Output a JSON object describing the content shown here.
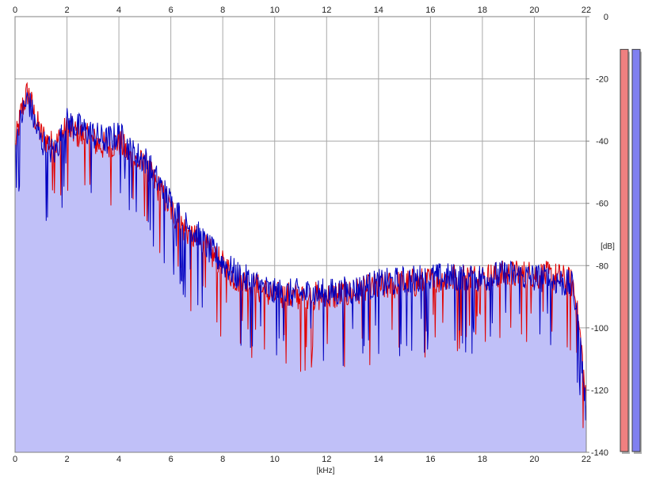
{
  "chart_data": {
    "type": "area",
    "title": "",
    "xlabel": "[kHz]",
    "ylabel": "[dB]",
    "xlim": [
      0,
      22
    ],
    "ylim": [
      -140,
      0
    ],
    "x_ticks": [
      0,
      2,
      4,
      6,
      8,
      10,
      12,
      14,
      16,
      18,
      20,
      22
    ],
    "y_ticks": [
      0,
      -20,
      -40,
      -60,
      -80,
      -100,
      -120,
      -140
    ],
    "x_tick_labels": [
      "0",
      "2",
      "4",
      "6",
      "8",
      "10",
      "12",
      "14",
      "16",
      "18",
      "20",
      "22"
    ],
    "y_tick_labels": [
      "0",
      "-20",
      "-40",
      "-60",
      "-80",
      "-100",
      "-120",
      "-140"
    ],
    "grid": true,
    "x": [
      0,
      0.25,
      0.5,
      0.75,
      1,
      1.5,
      2,
      2.5,
      3,
      3.5,
      4,
      4.5,
      5,
      5.5,
      6,
      6.5,
      7,
      7.5,
      8,
      8.5,
      9,
      9.5,
      10,
      11,
      12,
      13,
      14,
      15,
      16,
      17,
      18,
      19,
      20,
      21,
      21.5,
      21.8,
      22
    ],
    "series": [
      {
        "color": "#e00000",
        "values": [
          -42,
          -30,
          -24,
          -32,
          -38,
          -42,
          -36,
          -38,
          -40,
          -42,
          -40,
          -46,
          -48,
          -55,
          -62,
          -68,
          -72,
          -76,
          -80,
          -84,
          -86,
          -88,
          -90,
          -90,
          -90,
          -89,
          -87,
          -86,
          -85,
          -84,
          -84,
          -83,
          -83,
          -84,
          -86,
          -105,
          -125
        ]
      },
      {
        "color": "#0000c0",
        "values": [
          -44,
          -32,
          -26,
          -34,
          -40,
          -44,
          -34,
          -36,
          -38,
          -40,
          -38,
          -44,
          -46,
          -53,
          -60,
          -66,
          -70,
          -75,
          -79,
          -83,
          -85,
          -87,
          -89,
          -89,
          -89,
          -88,
          -86,
          -85,
          -84,
          -84,
          -84,
          -83,
          -84,
          -85,
          -87,
          -108,
          -128
        ]
      }
    ],
    "fill_color": "#c0c0f8",
    "meters": [
      {
        "color": "#f08080",
        "level": 0.98
      },
      {
        "color": "#8080f0",
        "level": 0.98
      }
    ]
  }
}
